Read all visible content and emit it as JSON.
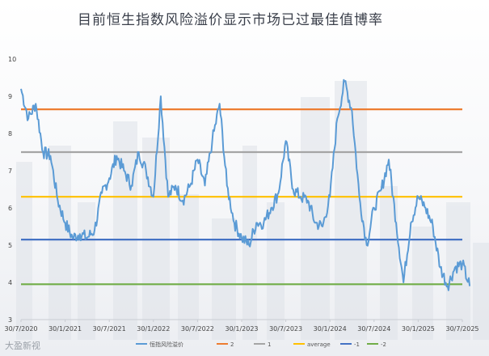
{
  "chart_data": {
    "type": "line",
    "title": "目前恒生指数风险溢价显示市场已过最佳值博率",
    "xlabel": "",
    "ylabel": "",
    "ylim": [
      3,
      10
    ],
    "yticks": [
      "3",
      "4",
      "5",
      "6",
      "7",
      "8",
      "9",
      "10"
    ],
    "xticks": [
      "30/7/2020",
      "30/1/2021",
      "30/7/2021",
      "30/1/2022",
      "30/7/2022",
      "30/1/2023",
      "30/7/2023",
      "30/1/2024",
      "30/7/2024",
      "30/1/2025",
      "30/7/2025"
    ],
    "grid": false,
    "legend_position": "bottom",
    "series": [
      {
        "name": "恒指风险溢价",
        "color": "#5b9bd5",
        "x": [
          "2020-07",
          "2020-08",
          "2020-09",
          "2020-10",
          "2020-11",
          "2020-12",
          "2021-01",
          "2021-02",
          "2021-03",
          "2021-04",
          "2021-05",
          "2021-06",
          "2021-07",
          "2021-08",
          "2021-09",
          "2021-10",
          "2021-11",
          "2021-12",
          "2022-01",
          "2022-02",
          "2022-03",
          "2022-04",
          "2022-05",
          "2022-06",
          "2022-07",
          "2022-08",
          "2022-09",
          "2022-10",
          "2022-11",
          "2022-12",
          "2023-01",
          "2023-02",
          "2023-03",
          "2023-04",
          "2023-05",
          "2023-06",
          "2023-07",
          "2023-08",
          "2023-09",
          "2023-10",
          "2023-11",
          "2023-12",
          "2024-01",
          "2024-02",
          "2024-03",
          "2024-04",
          "2024-05",
          "2024-06",
          "2024-07",
          "2024-08",
          "2024-09",
          "2024-10",
          "2024-11",
          "2024-12",
          "2025-01",
          "2025-02",
          "2025-03",
          "2025-04",
          "2025-05",
          "2025-06",
          "2025-07",
          "2025-08"
        ],
        "values": [
          9.2,
          8.4,
          8.8,
          7.5,
          7.4,
          6.2,
          5.6,
          5.2,
          5.3,
          5.2,
          5.4,
          6.4,
          6.8,
          7.4,
          7.0,
          6.6,
          7.5,
          7.0,
          6.3,
          9.0,
          6.3,
          6.6,
          6.2,
          6.6,
          7.3,
          6.6,
          7.8,
          8.8,
          6.6,
          5.6,
          5.2,
          5.0,
          5.6,
          5.6,
          6.0,
          6.4,
          7.8,
          6.5,
          6.3,
          6.2,
          5.6,
          5.5,
          6.3,
          8.4,
          9.4,
          8.6,
          6.3,
          5.0,
          6.0,
          6.5,
          7.3,
          5.6,
          4.0,
          5.6,
          6.3,
          6.0,
          5.5,
          4.4,
          3.9,
          4.4,
          4.5,
          3.9
        ]
      },
      {
        "name": "2",
        "color": "#ed7d31",
        "values": [
          8.65
        ]
      },
      {
        "name": "1",
        "color": "#a5a5a5",
        "values": [
          7.5
        ]
      },
      {
        "name": "average",
        "color": "#ffc000",
        "values": [
          6.3
        ]
      },
      {
        "name": "-1",
        "color": "#4472c4",
        "values": [
          5.15
        ]
      },
      {
        "name": "-2",
        "color": "#70ad47",
        "values": [
          3.95
        ]
      }
    ]
  },
  "watermark": "大盈新视"
}
